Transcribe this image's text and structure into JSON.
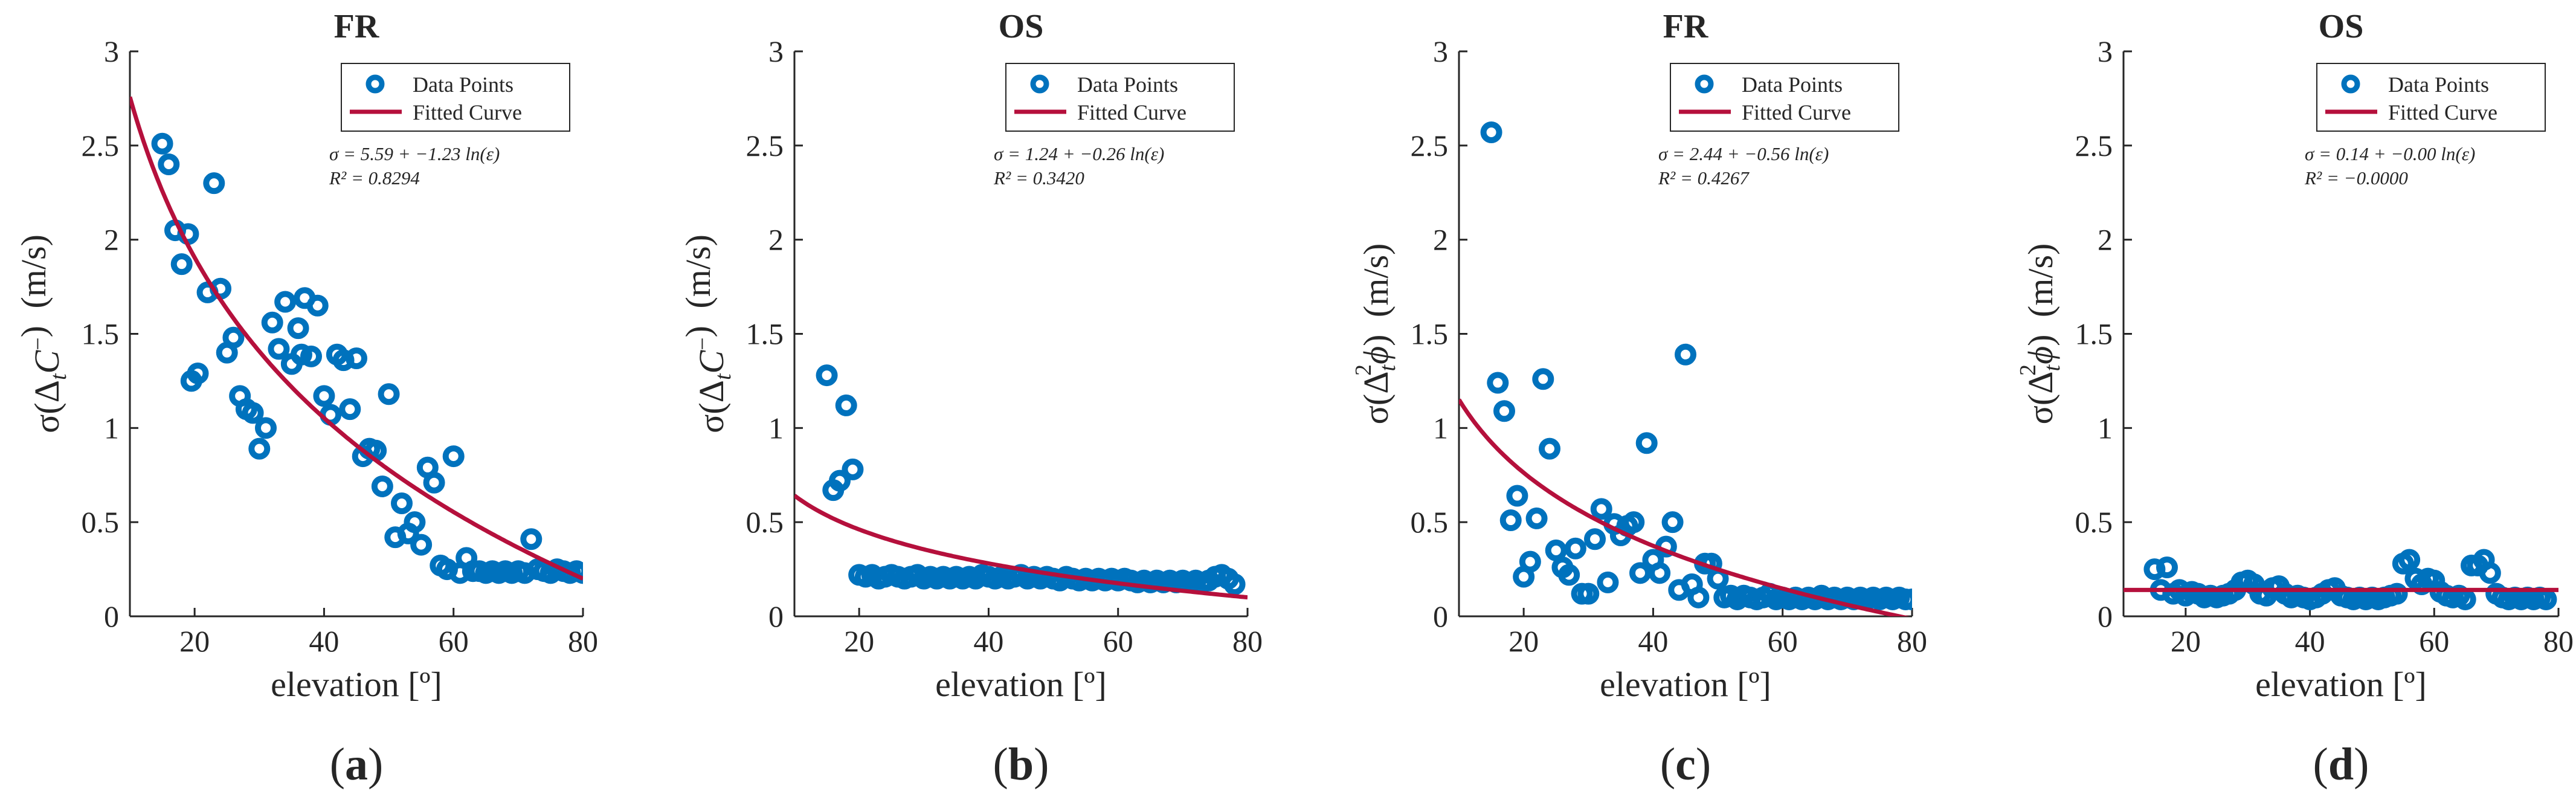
{
  "legend_labels": {
    "points": "Data Points",
    "curve": "Fitted Curve"
  },
  "colors": {
    "points": "#0072BD",
    "curve": "#B5103C",
    "axis": "#262626"
  },
  "chart_data": [
    {
      "type": "scatter",
      "panel_label": "a",
      "title": "FR",
      "xlabel": "elevation [º]",
      "ylabel": "σ(Δ",
      "ylabel_sub": "t",
      "ylabel_tail": "C",
      "ylabel_sup": "−",
      "ylabel_close": ")",
      "ylabel_unit": "(m/s)",
      "xlim": [
        10,
        80
      ],
      "ylim": [
        0,
        3
      ],
      "xticks": [
        20,
        40,
        60,
        80
      ],
      "yticks": [
        0,
        0.5,
        1,
        1.5,
        2,
        2.5,
        3
      ],
      "ytick_labels": [
        "0",
        "0.5",
        "1",
        "1.5",
        "2",
        "2.5",
        "3"
      ],
      "legend_position": "top-right",
      "equation": "σ = 5.59 + −1.23 ln(ε)",
      "r_squared": "R² = 0.8294",
      "fit": {
        "a": 5.59,
        "b": -1.23
      },
      "points": [
        [
          15,
          2.51
        ],
        [
          16,
          2.4
        ],
        [
          17,
          2.05
        ],
        [
          18,
          1.87
        ],
        [
          19,
          2.03
        ],
        [
          19.5,
          1.25
        ],
        [
          20.5,
          1.29
        ],
        [
          22,
          1.72
        ],
        [
          23,
          2.3
        ],
        [
          24,
          1.74
        ],
        [
          25,
          1.4
        ],
        [
          26,
          1.48
        ],
        [
          27,
          1.17
        ],
        [
          28,
          1.1
        ],
        [
          29,
          1.08
        ],
        [
          30,
          0.89
        ],
        [
          31,
          1.0
        ],
        [
          32,
          1.56
        ],
        [
          33,
          1.42
        ],
        [
          34,
          1.67
        ],
        [
          35,
          1.34
        ],
        [
          36,
          1.53
        ],
        [
          36.5,
          1.39
        ],
        [
          37,
          1.69
        ],
        [
          38,
          1.38
        ],
        [
          39,
          1.65
        ],
        [
          40,
          1.17
        ],
        [
          41,
          1.07
        ],
        [
          42,
          1.39
        ],
        [
          43,
          1.36
        ],
        [
          44,
          1.1
        ],
        [
          45,
          1.37
        ],
        [
          46,
          0.85
        ],
        [
          47,
          0.89
        ],
        [
          48,
          0.88
        ],
        [
          49,
          0.69
        ],
        [
          50,
          1.18
        ],
        [
          51,
          0.42
        ],
        [
          52,
          0.6
        ],
        [
          53,
          0.44
        ],
        [
          54,
          0.5
        ],
        [
          55,
          0.38
        ],
        [
          56,
          0.79
        ],
        [
          57,
          0.71
        ],
        [
          58,
          0.27
        ],
        [
          59,
          0.25
        ],
        [
          60,
          0.85
        ],
        [
          61,
          0.23
        ],
        [
          62,
          0.31
        ],
        [
          63,
          0.24
        ],
        [
          64,
          0.24
        ],
        [
          65,
          0.23
        ],
        [
          66,
          0.24
        ],
        [
          67,
          0.23
        ],
        [
          68,
          0.24
        ],
        [
          69,
          0.23
        ],
        [
          70,
          0.24
        ],
        [
          71,
          0.23
        ],
        [
          72,
          0.41
        ],
        [
          73,
          0.25
        ],
        [
          74,
          0.24
        ],
        [
          75,
          0.23
        ],
        [
          76,
          0.25
        ],
        [
          77,
          0.24
        ],
        [
          78,
          0.23
        ],
        [
          79,
          0.24
        ],
        [
          80,
          0.23
        ]
      ]
    },
    {
      "type": "scatter",
      "panel_label": "b",
      "title": "OS",
      "xlabel": "elevation [º]",
      "ylabel": "σ(Δ",
      "ylabel_sub": "t",
      "ylabel_tail": "C",
      "ylabel_sup": "−",
      "ylabel_close": ")",
      "ylabel_unit": "(m/s)",
      "xlim": [
        10,
        80
      ],
      "ylim": [
        0,
        3
      ],
      "xticks": [
        20,
        40,
        60,
        80
      ],
      "yticks": [
        0,
        0.5,
        1,
        1.5,
        2,
        2.5,
        3
      ],
      "ytick_labels": [
        "0",
        "0.5",
        "1",
        "1.5",
        "2",
        "2.5",
        "3"
      ],
      "legend_position": "top-right",
      "equation": "σ = 1.24 + −0.26 ln(ε)",
      "r_squared": "R² = 0.3420",
      "fit": {
        "a": 1.24,
        "b": -0.26
      },
      "points": [
        [
          15,
          1.28
        ],
        [
          16,
          0.67
        ],
        [
          17,
          0.72
        ],
        [
          18,
          1.12
        ],
        [
          19,
          0.78
        ],
        [
          20,
          0.22
        ],
        [
          21,
          0.21
        ],
        [
          22,
          0.22
        ],
        [
          23,
          0.2
        ],
        [
          24,
          0.21
        ],
        [
          25,
          0.22
        ],
        [
          26,
          0.21
        ],
        [
          27,
          0.2
        ],
        [
          28,
          0.21
        ],
        [
          29,
          0.22
        ],
        [
          30,
          0.2
        ],
        [
          31,
          0.21
        ],
        [
          32,
          0.2
        ],
        [
          33,
          0.21
        ],
        [
          34,
          0.2
        ],
        [
          35,
          0.21
        ],
        [
          36,
          0.2
        ],
        [
          37,
          0.21
        ],
        [
          38,
          0.2
        ],
        [
          39,
          0.22
        ],
        [
          40,
          0.21
        ],
        [
          41,
          0.2
        ],
        [
          42,
          0.21
        ],
        [
          43,
          0.2
        ],
        [
          44,
          0.21
        ],
        [
          45,
          0.22
        ],
        [
          46,
          0.2
        ],
        [
          47,
          0.21
        ],
        [
          48,
          0.2
        ],
        [
          49,
          0.21
        ],
        [
          50,
          0.2
        ],
        [
          51,
          0.19
        ],
        [
          52,
          0.21
        ],
        [
          53,
          0.2
        ],
        [
          54,
          0.19
        ],
        [
          55,
          0.2
        ],
        [
          56,
          0.19
        ],
        [
          57,
          0.2
        ],
        [
          58,
          0.19
        ],
        [
          59,
          0.2
        ],
        [
          60,
          0.19
        ],
        [
          61,
          0.2
        ],
        [
          62,
          0.19
        ],
        [
          63,
          0.18
        ],
        [
          64,
          0.19
        ],
        [
          65,
          0.18
        ],
        [
          66,
          0.19
        ],
        [
          67,
          0.18
        ],
        [
          68,
          0.19
        ],
        [
          69,
          0.18
        ],
        [
          70,
          0.19
        ],
        [
          71,
          0.18
        ],
        [
          72,
          0.19
        ],
        [
          73,
          0.18
        ],
        [
          74,
          0.19
        ],
        [
          75,
          0.21
        ],
        [
          76,
          0.22
        ],
        [
          77,
          0.2
        ],
        [
          78,
          0.17
        ]
      ]
    },
    {
      "type": "scatter",
      "panel_label": "c",
      "title": "FR",
      "xlabel": "elevation [º]",
      "ylabel": "σ(Δ",
      "ylabel_sub": "t",
      "ylabel_tail": "ϕ",
      "ylabel_sup": "2",
      "ylabel_close": ")",
      "ylabel_unit": "(m/s)",
      "xlim": [
        10,
        80
      ],
      "ylim": [
        0,
        3
      ],
      "xticks": [
        20,
        40,
        60,
        80
      ],
      "yticks": [
        0,
        0.5,
        1,
        1.5,
        2,
        2.5,
        3
      ],
      "ytick_labels": [
        "0",
        "0.5",
        "1",
        "1.5",
        "2",
        "2.5",
        "3"
      ],
      "legend_position": "top-right",
      "equation": "σ = 2.44 + −0.56 ln(ε)",
      "r_squared": "R² = 0.4267",
      "fit": {
        "a": 2.44,
        "b": -0.56
      },
      "points": [
        [
          15,
          2.57
        ],
        [
          16,
          1.24
        ],
        [
          17,
          1.09
        ],
        [
          18,
          0.51
        ],
        [
          19,
          0.64
        ],
        [
          20,
          0.21
        ],
        [
          21,
          0.29
        ],
        [
          22,
          0.52
        ],
        [
          23,
          1.26
        ],
        [
          24,
          0.89
        ],
        [
          25,
          0.35
        ],
        [
          26,
          0.26
        ],
        [
          27,
          0.22
        ],
        [
          28,
          0.36
        ],
        [
          29,
          0.12
        ],
        [
          30,
          0.12
        ],
        [
          31,
          0.41
        ],
        [
          32,
          0.57
        ],
        [
          33,
          0.18
        ],
        [
          34,
          0.49
        ],
        [
          35,
          0.43
        ],
        [
          36,
          0.48
        ],
        [
          37,
          0.5
        ],
        [
          38,
          0.23
        ],
        [
          39,
          0.92
        ],
        [
          40,
          0.3
        ],
        [
          41,
          0.23
        ],
        [
          42,
          0.37
        ],
        [
          43,
          0.5
        ],
        [
          44,
          0.14
        ],
        [
          45,
          1.39
        ],
        [
          46,
          0.17
        ],
        [
          47,
          0.1
        ],
        [
          48,
          0.28
        ],
        [
          49,
          0.28
        ],
        [
          50,
          0.2
        ],
        [
          51,
          0.1
        ],
        [
          52,
          0.11
        ],
        [
          53,
          0.09
        ],
        [
          54,
          0.11
        ],
        [
          55,
          0.1
        ],
        [
          56,
          0.09
        ],
        [
          57,
          0.1
        ],
        [
          58,
          0.12
        ],
        [
          59,
          0.09
        ],
        [
          60,
          0.1
        ],
        [
          61,
          0.09
        ],
        [
          62,
          0.1
        ],
        [
          63,
          0.09
        ],
        [
          64,
          0.1
        ],
        [
          65,
          0.09
        ],
        [
          66,
          0.11
        ],
        [
          67,
          0.09
        ],
        [
          68,
          0.1
        ],
        [
          69,
          0.09
        ],
        [
          70,
          0.1
        ],
        [
          71,
          0.09
        ],
        [
          72,
          0.1
        ],
        [
          73,
          0.09
        ],
        [
          74,
          0.1
        ],
        [
          75,
          0.09
        ],
        [
          76,
          0.1
        ],
        [
          77,
          0.09
        ],
        [
          78,
          0.1
        ],
        [
          79,
          0.09
        ],
        [
          80,
          0.09
        ]
      ]
    },
    {
      "type": "scatter",
      "panel_label": "d",
      "title": "OS",
      "xlabel": "elevation [º]",
      "ylabel": "σ(Δ",
      "ylabel_sub": "t",
      "ylabel_tail": "ϕ",
      "ylabel_sup": "2",
      "ylabel_close": ")",
      "ylabel_unit": "(m/s)",
      "xlim": [
        10,
        80
      ],
      "ylim": [
        0,
        3
      ],
      "xticks": [
        20,
        40,
        60,
        80
      ],
      "yticks": [
        0,
        0.5,
        1,
        1.5,
        2,
        2.5,
        3
      ],
      "ytick_labels": [
        "0",
        "0.5",
        "1",
        "1.5",
        "2",
        "2.5",
        "3"
      ],
      "legend_position": "top-right",
      "equation": "σ = 0.14 + −0.00 ln(ε)",
      "r_squared": "R² = −0.0000",
      "fit": {
        "a": 0.14,
        "b": 0.0
      },
      "points": [
        [
          15,
          0.25
        ],
        [
          16,
          0.14
        ],
        [
          17,
          0.26
        ],
        [
          18,
          0.12
        ],
        [
          19,
          0.14
        ],
        [
          20,
          0.11
        ],
        [
          21,
          0.13
        ],
        [
          22,
          0.12
        ],
        [
          23,
          0.1
        ],
        [
          24,
          0.11
        ],
        [
          25,
          0.1
        ],
        [
          26,
          0.11
        ],
        [
          27,
          0.12
        ],
        [
          28,
          0.14
        ],
        [
          29,
          0.18
        ],
        [
          30,
          0.19
        ],
        [
          31,
          0.17
        ],
        [
          32,
          0.12
        ],
        [
          33,
          0.11
        ],
        [
          34,
          0.15
        ],
        [
          35,
          0.16
        ],
        [
          36,
          0.12
        ],
        [
          37,
          0.1
        ],
        [
          38,
          0.11
        ],
        [
          39,
          0.1
        ],
        [
          40,
          0.09
        ],
        [
          41,
          0.1
        ],
        [
          42,
          0.12
        ],
        [
          43,
          0.14
        ],
        [
          44,
          0.15
        ],
        [
          45,
          0.11
        ],
        [
          46,
          0.1
        ],
        [
          47,
          0.09
        ],
        [
          48,
          0.1
        ],
        [
          49,
          0.09
        ],
        [
          50,
          0.1
        ],
        [
          51,
          0.09
        ],
        [
          52,
          0.1
        ],
        [
          53,
          0.11
        ],
        [
          54,
          0.12
        ],
        [
          55,
          0.28
        ],
        [
          56,
          0.3
        ],
        [
          57,
          0.2
        ],
        [
          58,
          0.17
        ],
        [
          59,
          0.2
        ],
        [
          60,
          0.19
        ],
        [
          61,
          0.13
        ],
        [
          62,
          0.11
        ],
        [
          63,
          0.1
        ],
        [
          64,
          0.11
        ],
        [
          65,
          0.09
        ],
        [
          66,
          0.27
        ],
        [
          67,
          0.27
        ],
        [
          68,
          0.3
        ],
        [
          69,
          0.23
        ],
        [
          70,
          0.12
        ],
        [
          71,
          0.1
        ],
        [
          72,
          0.09
        ],
        [
          73,
          0.1
        ],
        [
          74,
          0.09
        ],
        [
          75,
          0.1
        ],
        [
          76,
          0.09
        ],
        [
          77,
          0.1
        ],
        [
          78,
          0.09
        ]
      ]
    }
  ]
}
